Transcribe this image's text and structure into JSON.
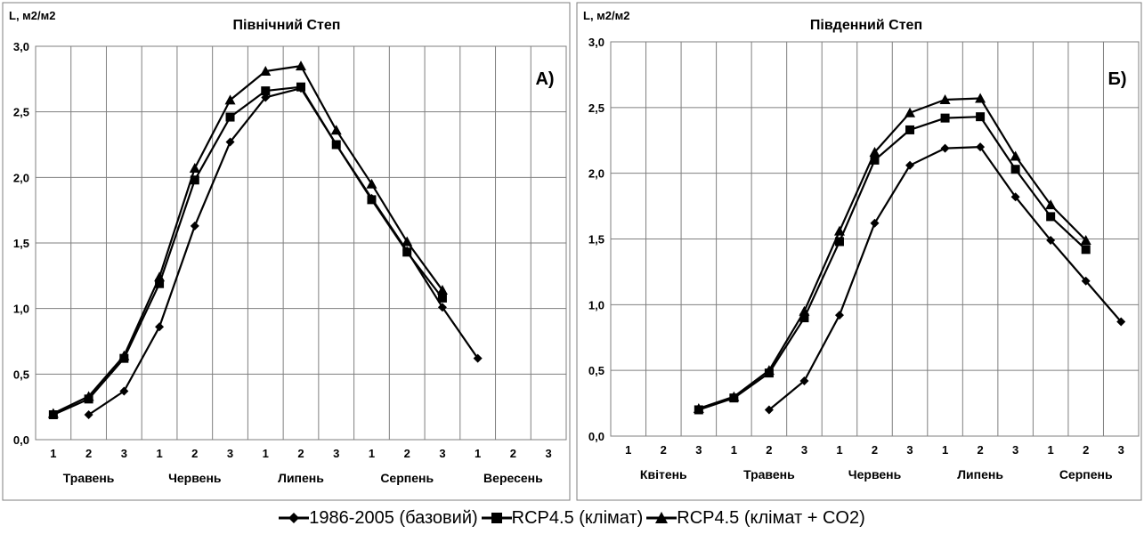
{
  "chart_data": [
    {
      "type": "line",
      "title": "Північний Степ",
      "ylabel": "L, м2/м2",
      "panel_label": "А)",
      "ylim": [
        0,
        3
      ],
      "yticks": [
        "0,0",
        "0,5",
        "1,0",
        "1,5",
        "2,0",
        "2,5",
        "3,0"
      ],
      "categories": [
        "1",
        "2",
        "3",
        "1",
        "2",
        "3",
        "1",
        "2",
        "3",
        "1",
        "2",
        "3",
        "1",
        "2",
        "3"
      ],
      "months": [
        "Травень",
        "Червень",
        "Липень",
        "Серпень",
        "Вересень"
      ],
      "grid": true,
      "series": [
        {
          "name": "1986-2005 (базовий)",
          "marker": "diamond",
          "values": [
            null,
            0.19,
            0.37,
            0.86,
            1.63,
            2.27,
            2.61,
            2.68,
            2.25,
            1.84,
            1.44,
            1.01,
            0.62,
            null,
            null
          ]
        },
        {
          "name": "RCP4.5 (клімат)",
          "marker": "square",
          "values": [
            0.19,
            0.31,
            0.62,
            1.19,
            1.98,
            2.46,
            2.66,
            2.69,
            2.25,
            1.83,
            1.43,
            1.08,
            null,
            null,
            null
          ]
        },
        {
          "name": "RCP4.5 (клімат + CO2)",
          "marker": "triangle",
          "values": [
            0.2,
            0.33,
            0.64,
            1.24,
            2.07,
            2.59,
            2.81,
            2.85,
            2.36,
            1.95,
            1.51,
            1.14,
            null,
            null,
            null
          ]
        }
      ]
    },
    {
      "type": "line",
      "title": "Південний Степ",
      "ylabel": "L, м2/м2",
      "panel_label": "Б)",
      "ylim": [
        0,
        3
      ],
      "yticks": [
        "0,0",
        "0,5",
        "1,0",
        "1,5",
        "2,0",
        "2,5",
        "3,0"
      ],
      "categories": [
        "1",
        "2",
        "3",
        "1",
        "2",
        "3",
        "1",
        "2",
        "3",
        "1",
        "2",
        "3",
        "1",
        "2",
        "3"
      ],
      "months": [
        "Квітень",
        "Травень",
        "Червень",
        "Липень",
        "Серпень"
      ],
      "grid": true,
      "series": [
        {
          "name": "1986-2005 (базовий)",
          "marker": "diamond",
          "values": [
            null,
            null,
            null,
            null,
            0.2,
            0.42,
            0.92,
            1.62,
            2.06,
            2.19,
            2.2,
            1.82,
            1.49,
            1.18,
            0.87
          ]
        },
        {
          "name": "RCP4.5 (клімат)",
          "marker": "square",
          "values": [
            null,
            null,
            0.2,
            0.29,
            0.48,
            0.9,
            1.48,
            2.1,
            2.33,
            2.42,
            2.43,
            2.03,
            1.67,
            1.42,
            null
          ]
        },
        {
          "name": "RCP4.5 (клімат + CO2)",
          "marker": "triangle",
          "values": [
            null,
            null,
            0.21,
            0.3,
            0.5,
            0.95,
            1.56,
            2.16,
            2.46,
            2.56,
            2.57,
            2.13,
            1.76,
            1.49,
            null
          ]
        }
      ]
    }
  ],
  "legend": {
    "items": [
      {
        "label": "1986-2005 (базовий)",
        "marker": "diamond"
      },
      {
        "label": "RCP4.5 (клімат)",
        "marker": "square"
      },
      {
        "label": "RCP4.5 (клімат + CO2)",
        "marker": "triangle"
      }
    ]
  },
  "colors": {
    "line": "#000000",
    "grid": "#7f7f7f",
    "frame": "#7f7f7f",
    "background": "#ffffff"
  }
}
